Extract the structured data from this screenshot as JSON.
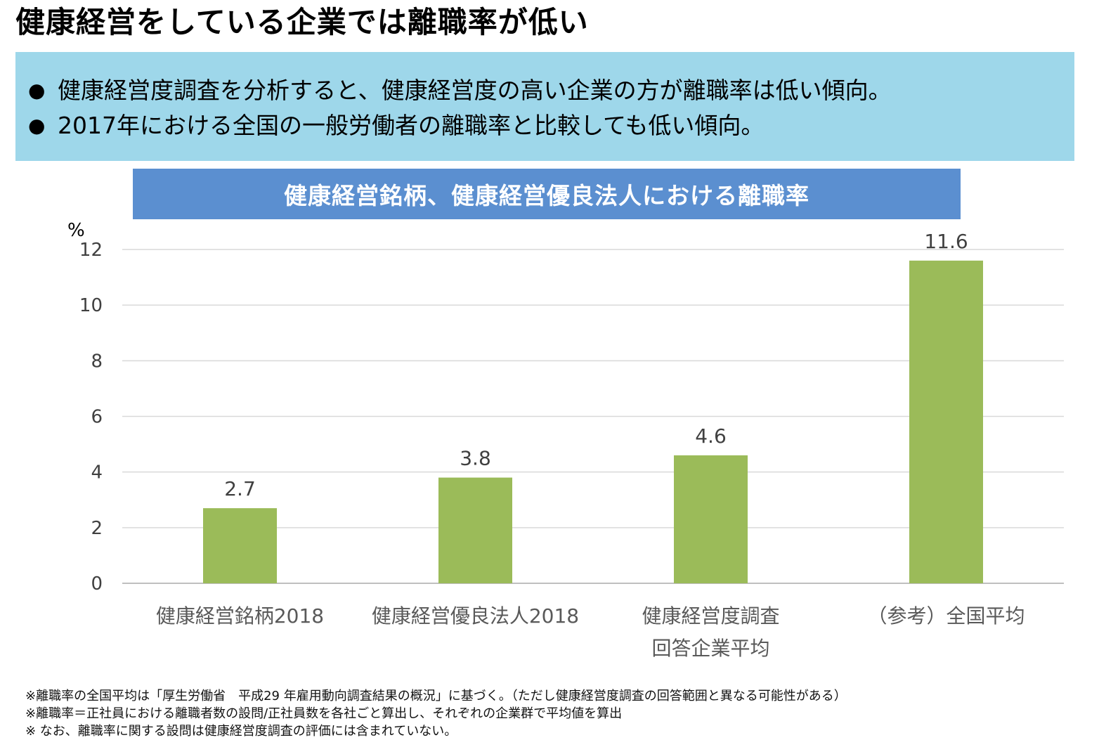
{
  "page": {
    "title": "健康経営をしている企業では離職率が低い"
  },
  "summary": {
    "bullets": [
      "健康経営度調査を分析すると、健康経営度の高い企業の方が離職率は低い傾向。",
      "2017年における全国の一般労働者の離職率と比較しても低い傾向。"
    ]
  },
  "chart_data": {
    "type": "bar",
    "title": "健康経営銘柄、健康経営優良法人における離職率",
    "ylabel": "%",
    "xlabel": "",
    "ylim": [
      0,
      12
    ],
    "yticks": [
      0,
      2,
      4,
      6,
      8,
      10,
      12
    ],
    "grid": true,
    "categories": [
      [
        "健康経営銘柄2018"
      ],
      [
        "健康経営優良法人2018"
      ],
      [
        "健康経営度調査",
        "回答企業平均"
      ],
      [
        "（参考）全国平均"
      ]
    ],
    "values": [
      2.7,
      3.8,
      4.6,
      11.6
    ],
    "data_labels": [
      "2.7",
      "3.8",
      "4.6",
      "11.6"
    ],
    "bar_color": "#9bbb59"
  },
  "notes": [
    "※離職率の全国平均は「厚生労働省　平成29 年雇用動向調査結果の概況」に基づく。（ただし健康経営度調査の回答範囲と異なる可能性がある）",
    "※離職率＝正社員における離職者数の設問/正社員数を各社ごと算出し、それぞれの企業群で平均値を算出",
    "※ なお、離職率に関する設問は健康経営度調査の評価には含まれていない。"
  ]
}
